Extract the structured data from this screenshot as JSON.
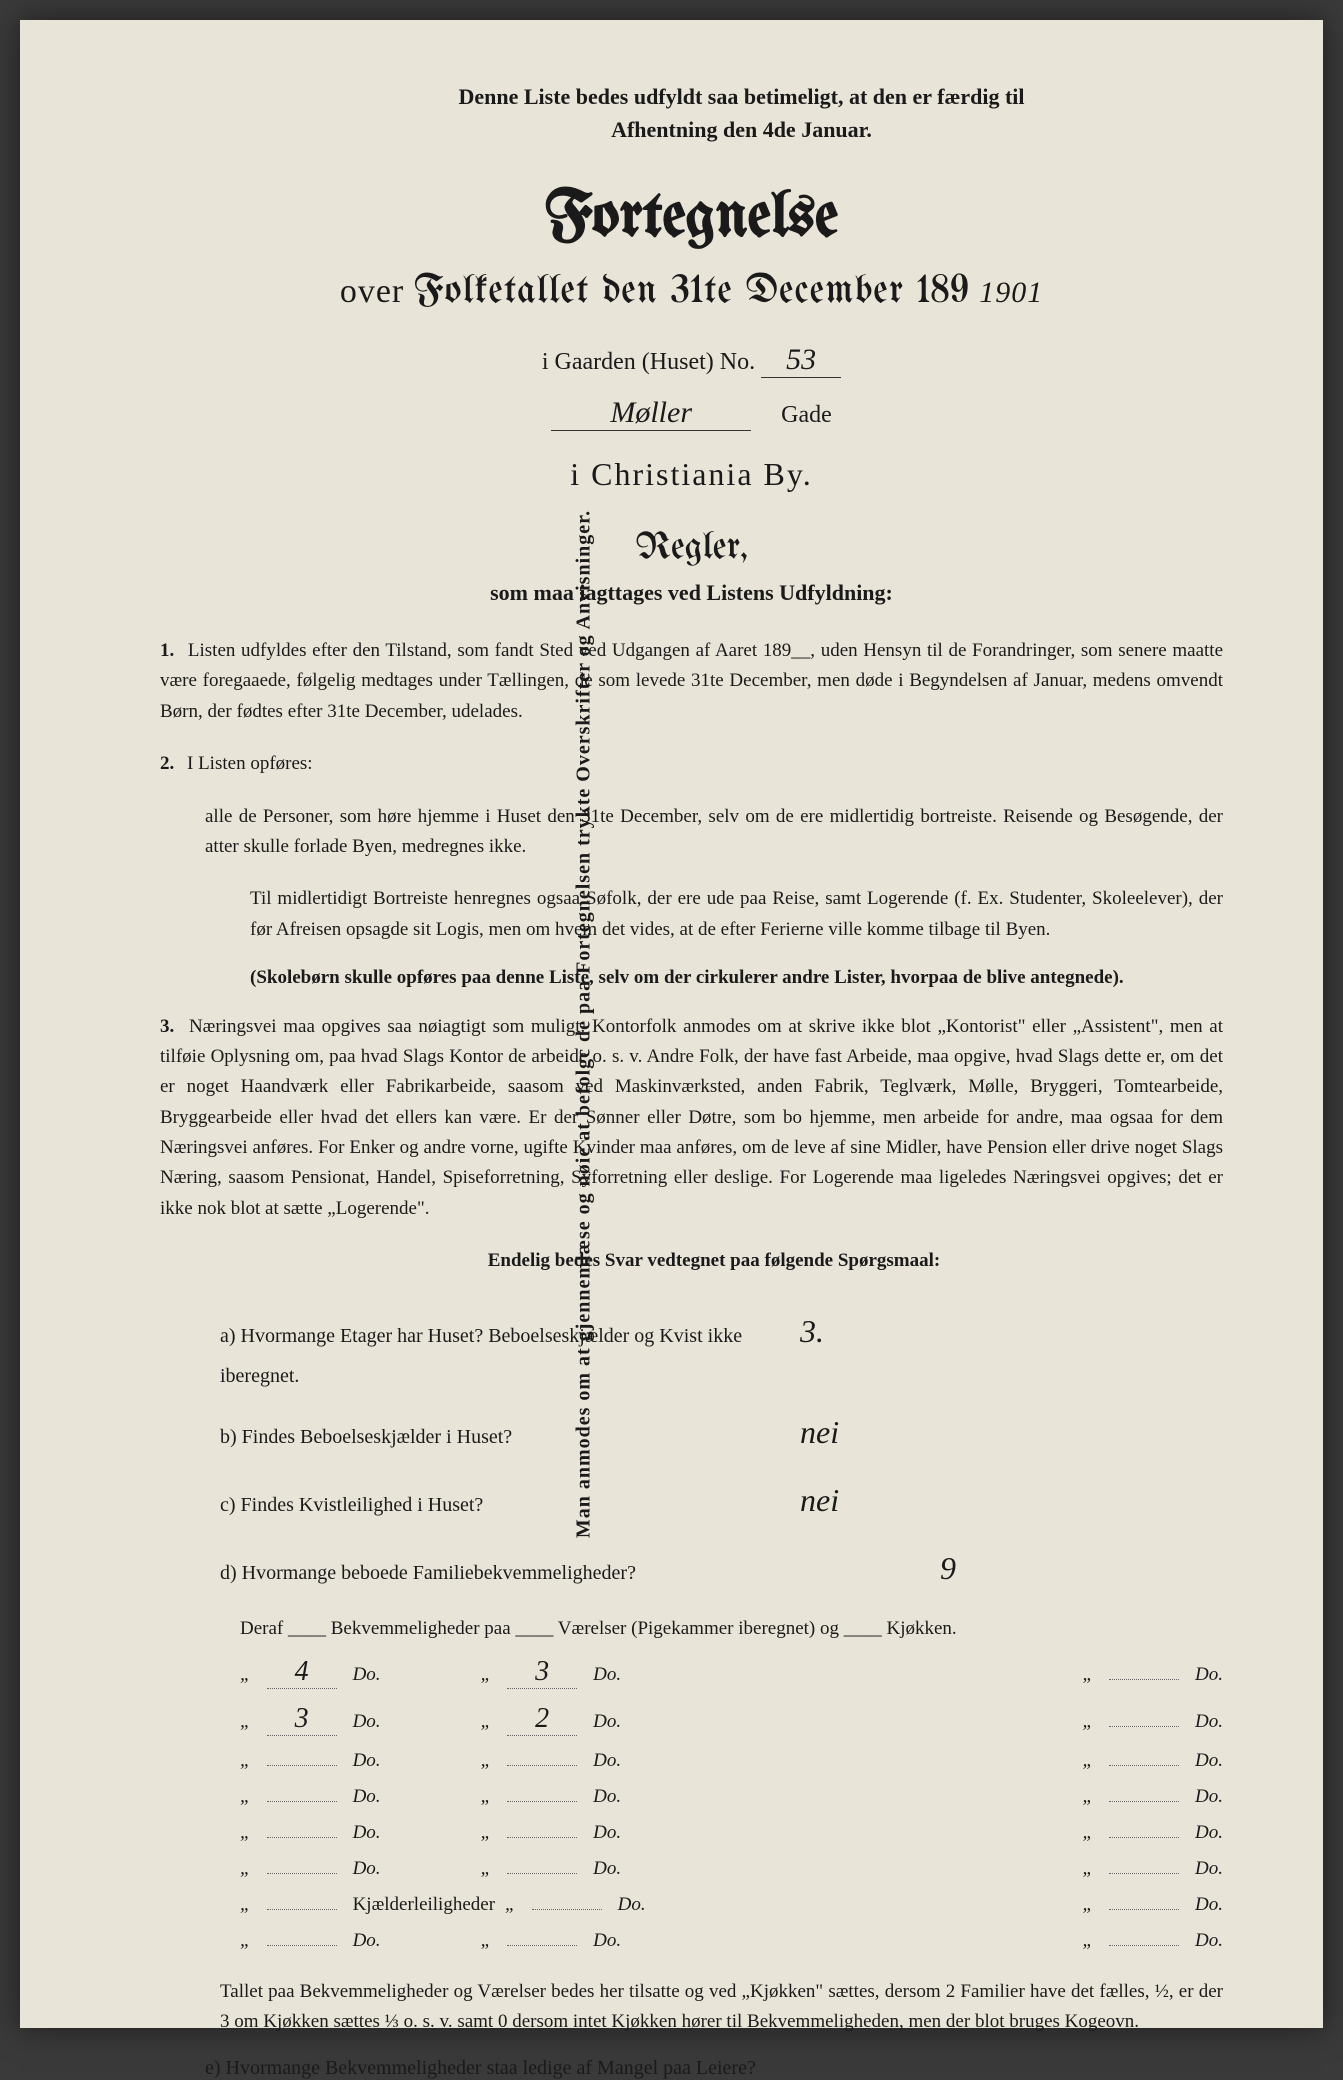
{
  "colors": {
    "paper": "#e8e4d8",
    "ink": "#1a1a1a",
    "background": "#3a3a3a"
  },
  "vertical_note": "Man anmodes om at gjennemlæse og nøie at befolgc de paa Fortegnelsen trykte Overskrifter og Anvisninger.",
  "top_note_line1": "Denne Liste bedes udfyldt saa betimeligt, at den er færdig til",
  "top_note_line2": "Afhentning den 4de Januar.",
  "title": "Fortegnelse",
  "subtitle_prefix": "over",
  "subtitle_main": "Folketallet den 31te December 189",
  "year_handwritten": "1901",
  "gaarden_label": "i Gaarden (Huset) No.",
  "gaarden_no": "53",
  "street_name": "Møller",
  "street_suffix": "Gade",
  "city_line": "i Christiania By.",
  "regler_title": "Regler,",
  "regler_sub": "som maa iagttages ved Listens Udfyldning:",
  "rule1": "Listen udfyldes efter den Tilstand, som fandt Sted ved Udgangen af Aaret 189__, uden Hensyn til de Forandringer, som senere maatte være foregaaede, følgelig medtages under Tællingen, de som levede 31te December, men døde i Begyndelsen af Januar, medens omvendt Børn, der fødtes efter 31te December, udelades.",
  "rule2_head": "I Listen opføres:",
  "rule2_a": "alle de Personer, som høre hjemme i Huset den 31te December, selv om de ere midlertidig bortreiste. Reisende og Besøgende, der atter skulle forlade Byen, medregnes ikke.",
  "rule2_b": "Til midlertidigt Bortreiste henregnes ogsaa Søfolk, der ere ude paa Reise, samt Logerende (f. Ex. Studenter, Skoleelever), der før Afreisen opsagde sit Logis, men om hvem det vides, at de efter Ferierne ville komme tilbage til Byen.",
  "rule2_note": "(Skolebørn skulle opføres paa denne Liste, selv om der cirkulerer andre Lister, hvorpaa de blive antegnede).",
  "rule3": "Næringsvei maa opgives saa nøiagtigt som muligt. Kontorfolk anmodes om at skrive ikke blot „Kontorist\" eller „Assistent\", men at tilføie Oplysning om, paa hvad Slags Kontor de arbeide o. s. v. Andre Folk, der have fast Arbeide, maa opgive, hvad Slags dette er, om det er noget Haandværk eller Fabrikarbeide, saasom ved Maskinværksted, anden Fabrik, Teglværk, Mølle, Bryggeri, Tomtearbeide, Bryggearbeide eller hvad det ellers kan være. Er der Sønner eller Døtre, som bo hjemme, men arbeide for andre, maa ogsaa for dem Næringsvei anføres. For Enker og andre vorne, ugifte Kvinder maa anføres, om de leve af sine Midler, have Pension eller drive noget Slags Næring, saasom Pensionat, Handel, Spiseforretning, Syforretning eller deslige. For Logerende maa ligeledes Næringsvei opgives; det er ikke nok blot at sætte „Logerende\".",
  "questions_intro": "Endelig bedes Svar vedtegnet paa følgende Spørgsmaal:",
  "q_a": "a) Hvormange Etager har Huset?  Beboelseskjælder og Kvist ikke iberegnet.",
  "q_a_ans": "3.",
  "q_b": "b) Findes Beboelseskjælder i Huset?",
  "q_b_ans": "nei",
  "q_c": "c) Findes Kvistleilighed i Huset?",
  "q_c_ans": "nei",
  "q_d": "d) Hvormange beboede Familiebekvemmeligheder?",
  "q_d_ans": "9",
  "table_header": "Deraf ____ Bekvemmeligheder paa ____ Værelser (Pigekammer iberegnet) og ____ Kjøkken.",
  "table_rows": [
    {
      "c1": "4",
      "c2": "3",
      "c3": ""
    },
    {
      "c1": "3",
      "c2": "2",
      "c3": ""
    },
    {
      "c1": "",
      "c2": "",
      "c3": ""
    },
    {
      "c1": "",
      "c2": "",
      "c3": ""
    },
    {
      "c1": "",
      "c2": "",
      "c3": ""
    },
    {
      "c1": "",
      "c2": "",
      "c3": ""
    }
  ],
  "kjaelder_label": "Kjælderleiligheder",
  "do_label": "Do.",
  "footnote": "Tallet paa Bekvemmeligheder og Værelser bedes her tilsatte og ved „Kjøkken\" sættes, dersom 2 Familier have det fælles, ½, er der 3 om Kjøkken sættes ⅓ o. s. v. samt 0 dersom intet Kjøkken hører til Bekvemmeligheden, men der blot bruges Kogeovn.",
  "q_e": "e) Hvormange Bekvemmeligheder staa ledige af Mangel paa Leiere?"
}
